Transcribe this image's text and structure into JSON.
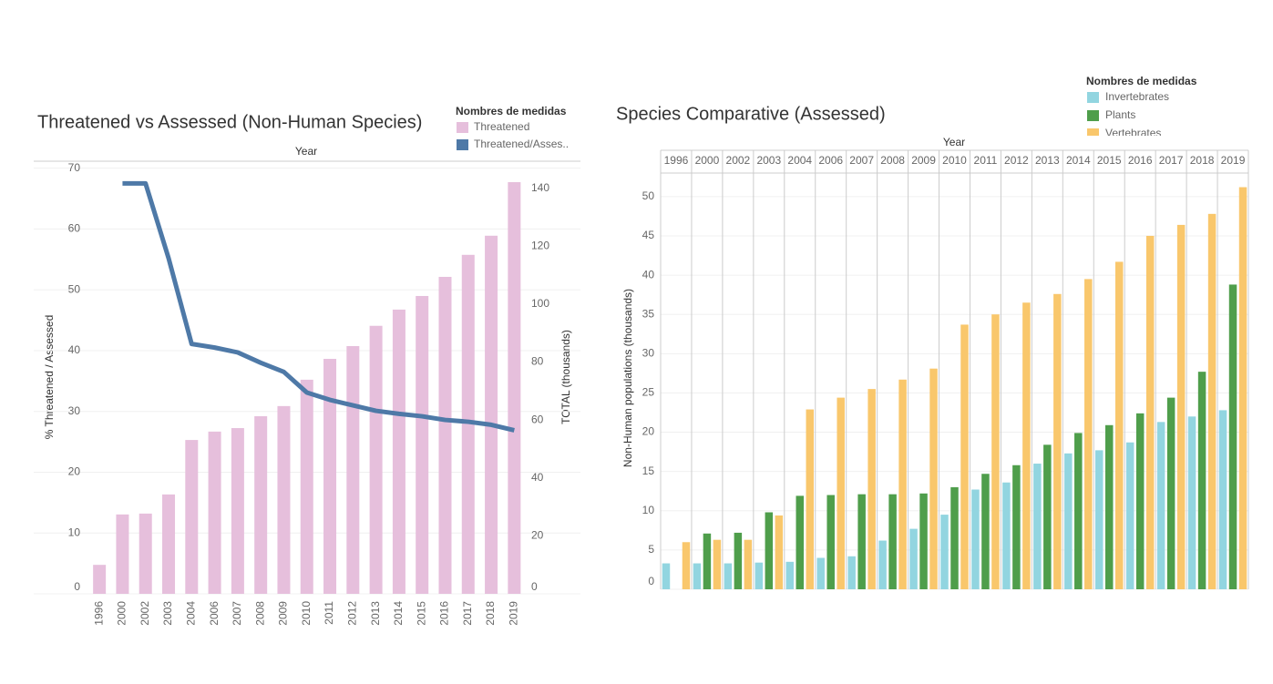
{
  "chart_data": [
    {
      "type": "combo",
      "title": "Threatened vs Assessed (Non-Human Species)",
      "x_label": "Year",
      "y_label": "% Threatened / Assessed",
      "y2_label": "TOTAL (thousands)",
      "legend_title": "Nombres de medidas",
      "categories": [
        "1996",
        "2000",
        "2002",
        "2003",
        "2004",
        "2006",
        "2007",
        "2008",
        "2009",
        "2010",
        "2011",
        "2012",
        "2013",
        "2014",
        "2015",
        "2016",
        "2017",
        "2018",
        "2019"
      ],
      "series": [
        {
          "name": "Threatened",
          "mark": "bar",
          "axis": "y2",
          "color": "#e6bfdc",
          "values": [
            10,
            27.4,
            27.7,
            34.3,
            53.1,
            56,
            57.2,
            61.3,
            64.8,
            73.9,
            81.1,
            85.5,
            92.5,
            98.1,
            102.8,
            109.4,
            117,
            123.6,
            142.1
          ]
        },
        {
          "name": "Threatened/Asses..",
          "mark": "line",
          "axis": "y",
          "color": "#4e79a7",
          "values": [
            null,
            67.5,
            67.5,
            55.2,
            41.1,
            40.5,
            39.7,
            38,
            36.5,
            33.1,
            31.9,
            31,
            30.1,
            29.6,
            29.2,
            28.6,
            28.3,
            27.8,
            26.9
          ]
        }
      ],
      "ylim": [
        0,
        71
      ],
      "yticks": [
        0,
        10,
        20,
        30,
        40,
        50,
        60,
        70
      ],
      "y2lim": [
        0,
        149
      ],
      "y2ticks": [
        0,
        20,
        40,
        60,
        80,
        100,
        120,
        140
      ],
      "grid": true
    },
    {
      "type": "bar",
      "title": "Species Comparative (Assessed)",
      "x_label": "Year",
      "y_label": "Non-Human populations (thousands)",
      "legend_title": "Nombres de medidas",
      "categories": [
        "1996",
        "2000",
        "2002",
        "2003",
        "2004",
        "2006",
        "2007",
        "2008",
        "2009",
        "2010",
        "2011",
        "2012",
        "2013",
        "2014",
        "2015",
        "2016",
        "2017",
        "2018",
        "2019"
      ],
      "series": [
        {
          "name": "Invertebrates",
          "color": "#92d5e0",
          "values": [
            3.3,
            3.3,
            3.3,
            3.4,
            3.5,
            4.0,
            4.2,
            6.2,
            7.7,
            9.5,
            12.7,
            13.6,
            16.0,
            17.3,
            17.7,
            18.7,
            21.3,
            22.0,
            22.8
          ]
        },
        {
          "name": "Plants",
          "color": "#4f9e4b",
          "values": [
            null,
            7.1,
            7.2,
            9.8,
            11.9,
            12.0,
            12.1,
            12.1,
            12.2,
            13.0,
            14.7,
            15.8,
            18.4,
            19.9,
            20.9,
            22.4,
            24.4,
            27.7,
            38.8
          ]
        },
        {
          "name": "Vertebrates",
          "color": "#f9c76c",
          "values": [
            6.0,
            6.3,
            6.3,
            9.4,
            22.9,
            24.4,
            25.5,
            26.7,
            28.1,
            33.7,
            35.0,
            36.5,
            37.6,
            39.5,
            41.7,
            45.0,
            46.4,
            47.8,
            51.2
          ]
        }
      ],
      "ylim": [
        0,
        53
      ],
      "yticks": [
        0,
        5,
        10,
        15,
        20,
        25,
        30,
        35,
        40,
        45,
        50
      ],
      "grid": true
    }
  ]
}
